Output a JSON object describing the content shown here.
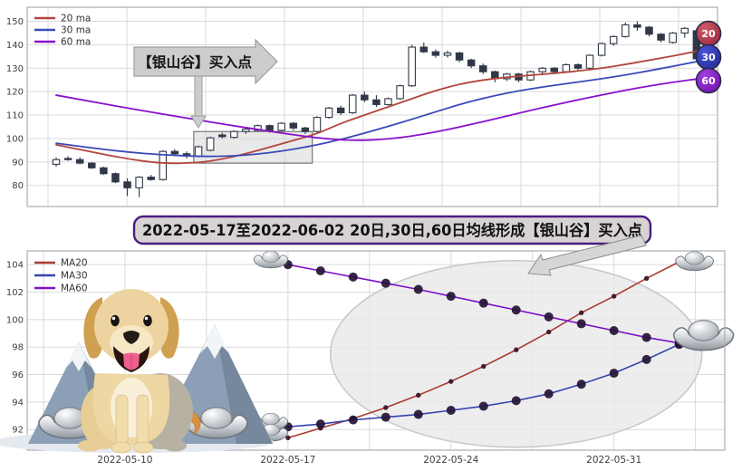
{
  "section_title": {
    "text": "2022-05-17至2022-06-02 20日,30日,60日均线形成【银山谷】买入点",
    "bg": "#d7d3d3",
    "border_color": "#4a1d7e"
  },
  "colors": {
    "grid": "#dadada",
    "spine": "#a8aeb6",
    "tick_text": "#3d3d3d",
    "candle": "#303848",
    "box_fill": "#d7d7d7",
    "box_stroke": "#5f5f5f",
    "callout_fill": "#cccccc",
    "callout_stroke": "#9e9e9e",
    "arrow_fill": "#d6d6d6",
    "arrow_stroke": "#8e8e8e",
    "ellipse_fill": "#e9e9e9",
    "ellipse_stroke": "#c7c7c7"
  },
  "chart_data": [
    {
      "type": "candlestick",
      "legend": [
        {
          "label": "20 ma",
          "color": "#b2453d"
        },
        {
          "label": "30 ma",
          "color": "#3a4ab8"
        },
        {
          "label": "60 ma",
          "color": "#8a10cb"
        }
      ],
      "ylim": [
        71,
        156
      ],
      "yticks": [
        80,
        90,
        100,
        110,
        120,
        130,
        140,
        150
      ],
      "grid": true,
      "callout": {
        "text": "【银山谷】买入点"
      },
      "highlight_box": {
        "x0": 11.6,
        "x1": 21.6,
        "y0": 89.5,
        "y1": 103
      },
      "badges": [
        {
          "label": "20",
          "inner": "#cf5a66",
          "outer": "#952241"
        },
        {
          "label": "30",
          "inner": "#4a55d6",
          "outer": "#1d2490"
        },
        {
          "label": "60",
          "inner": "#a13fe0",
          "outer": "#6a0aa8"
        }
      ],
      "candles_ohlc": [
        [
          89,
          92,
          88,
          91
        ],
        [
          91.5,
          92.5,
          90.5,
          91
        ],
        [
          91,
          92,
          89,
          89.5
        ],
        [
          89.5,
          90,
          87,
          87.5
        ],
        [
          87.5,
          88,
          84.5,
          85
        ],
        [
          85,
          85.5,
          81,
          81.5
        ],
        [
          81.5,
          83,
          75.5,
          79
        ],
        [
          79,
          84,
          75,
          83.5
        ],
        [
          83.5,
          84.5,
          82,
          82.5
        ],
        [
          82.5,
          95,
          82,
          94.5
        ],
        [
          94.5,
          95.5,
          92.5,
          93.5
        ],
        [
          93.5,
          94.5,
          91.5,
          92.5
        ],
        [
          92.5,
          97,
          92,
          96.5
        ],
        [
          95,
          100.8,
          94.5,
          100.3
        ],
        [
          101.5,
          102.5,
          100,
          100.8
        ],
        [
          100.5,
          103.5,
          100,
          103
        ],
        [
          103,
          104.5,
          102,
          104
        ],
        [
          103.5,
          106,
          103,
          105.5
        ],
        [
          105.5,
          106,
          102.5,
          103.5
        ],
        [
          103.5,
          107,
          103,
          106.5
        ],
        [
          106.5,
          107,
          103.5,
          104.5
        ],
        [
          104.5,
          105,
          102,
          103
        ],
        [
          103,
          109.5,
          102.5,
          109
        ],
        [
          109,
          113.5,
          108.5,
          113
        ],
        [
          113,
          114,
          110,
          111
        ],
        [
          111,
          119,
          110.5,
          118.5
        ],
        [
          118.5,
          120,
          115.5,
          116.5
        ],
        [
          116.5,
          118.5,
          113.5,
          114.5
        ],
        [
          114.5,
          117.5,
          114,
          117
        ],
        [
          117,
          123,
          116.5,
          122.5
        ],
        [
          122.5,
          140,
          122,
          139
        ],
        [
          139,
          141,
          136.5,
          137
        ],
        [
          137,
          138,
          134.5,
          135.5
        ],
        [
          135.5,
          137.5,
          134.5,
          136.5
        ],
        [
          136.5,
          137,
          132.5,
          133.5
        ],
        [
          133.5,
          134,
          130,
          131
        ],
        [
          131,
          132,
          127.5,
          128.5
        ],
        [
          128.5,
          129,
          124,
          125.5
        ],
        [
          125.5,
          128,
          124.5,
          127.5
        ],
        [
          127.5,
          128,
          124,
          125
        ],
        [
          125,
          129,
          124.5,
          128.5
        ],
        [
          128.5,
          130.5,
          127,
          130
        ],
        [
          130,
          130.5,
          127.5,
          128.5
        ],
        [
          128.5,
          132,
          128,
          131.5
        ],
        [
          131.5,
          132,
          129,
          130
        ],
        [
          130,
          136,
          129.5,
          135.5
        ],
        [
          135.5,
          141,
          135,
          140.5
        ],
        [
          140.5,
          144,
          139.5,
          143.5
        ],
        [
          143.5,
          149.5,
          143,
          148.5
        ],
        [
          148.5,
          150,
          146,
          147.5
        ],
        [
          147.5,
          148,
          143.5,
          144.5
        ],
        [
          144.5,
          145,
          141,
          142
        ],
        [
          141,
          145.5,
          140.5,
          145
        ],
        [
          145,
          147.5,
          143,
          147
        ],
        [
          146,
          147,
          132.5,
          134
        ],
        [
          136,
          137.5,
          133,
          135
        ]
      ],
      "ma_lines": [
        {
          "name": "20 ma",
          "color": "#b2453d",
          "points": [
            [
              0,
              97.3
            ],
            [
              3,
              94.3
            ],
            [
              6,
              91.3
            ],
            [
              9,
              89.3
            ],
            [
              12,
              89.6
            ],
            [
              14,
              91.2
            ],
            [
              16,
              93.5
            ],
            [
              18,
              96.3
            ],
            [
              20,
              99.2
            ],
            [
              22,
              102
            ],
            [
              24,
              106.5
            ],
            [
              26,
              110
            ],
            [
              28,
              113.5
            ],
            [
              30,
              117
            ],
            [
              32,
              120.5
            ],
            [
              34,
              123.2
            ],
            [
              36,
              125
            ],
            [
              38,
              126.2
            ],
            [
              40,
              127
            ],
            [
              42,
              127.8
            ],
            [
              44,
              128.8
            ],
            [
              46,
              130
            ],
            [
              48,
              131.6
            ],
            [
              50,
              133.4
            ],
            [
              52,
              135.2
            ],
            [
              54,
              137.2
            ],
            [
              55,
              138
            ]
          ]
        },
        {
          "name": "30 ma",
          "color": "#3a4ab8",
          "points": [
            [
              0,
              98
            ],
            [
              3,
              96
            ],
            [
              6,
              94.2
            ],
            [
              9,
              93
            ],
            [
              12,
              92.4
            ],
            [
              14,
              92.4
            ],
            [
              16,
              92.9
            ],
            [
              18,
              93.9
            ],
            [
              20,
              95.4
            ],
            [
              22,
              97.3
            ],
            [
              24,
              99.6
            ],
            [
              26,
              102.3
            ],
            [
              28,
              105.2
            ],
            [
              30,
              108.2
            ],
            [
              32,
              111.4
            ],
            [
              34,
              114.5
            ],
            [
              36,
              117.2
            ],
            [
              38,
              119.4
            ],
            [
              40,
              121.2
            ],
            [
              42,
              122.7
            ],
            [
              44,
              124.1
            ],
            [
              46,
              125.5
            ],
            [
              48,
              127.1
            ],
            [
              50,
              128.9
            ],
            [
              52,
              130.8
            ],
            [
              54,
              132.8
            ],
            [
              55,
              133.8
            ]
          ]
        },
        {
          "name": "60 ma",
          "color": "#8a10cb",
          "points": [
            [
              0,
              118.5
            ],
            [
              3,
              115.7
            ],
            [
              6,
              113
            ],
            [
              9,
              110.4
            ],
            [
              12,
              107.9
            ],
            [
              15,
              105.4
            ],
            [
              18,
              103.1
            ],
            [
              20,
              101.6
            ],
            [
              22,
              100.3
            ],
            [
              24,
              99.4
            ],
            [
              26,
              99.2
            ],
            [
              28,
              99.8
            ],
            [
              30,
              101
            ],
            [
              32,
              102.8
            ],
            [
              34,
              104.9
            ],
            [
              36,
              107.2
            ],
            [
              38,
              109.6
            ],
            [
              40,
              112
            ],
            [
              42,
              114.3
            ],
            [
              44,
              116.5
            ],
            [
              46,
              118.6
            ],
            [
              48,
              120.6
            ],
            [
              50,
              122.4
            ],
            [
              52,
              124
            ],
            [
              54,
              125.4
            ],
            [
              55,
              126
            ]
          ]
        }
      ]
    },
    {
      "type": "line",
      "legend": [
        {
          "label": "MA20",
          "color": "#a93a32"
        },
        {
          "label": "MA30",
          "color": "#3644ad"
        },
        {
          "label": "MA60",
          "color": "#7e10c8"
        }
      ],
      "ylim": [
        90.5,
        105
      ],
      "yticks": [
        92,
        94,
        96,
        98,
        100,
        102,
        104
      ],
      "x_day_range": [
        -8,
        13.4
      ],
      "xticks": [
        {
          "label": "2022-05-10",
          "day": -5
        },
        {
          "label": "2022-05-17",
          "day": 0
        },
        {
          "label": "2022-05-24",
          "day": 5
        },
        {
          "label": "2022-05-31",
          "day": 10
        }
      ],
      "dates": [
        "2022-05-17",
        "2022-05-18",
        "2022-05-19",
        "2022-05-20",
        "2022-05-23",
        "2022-05-24",
        "2022-05-25",
        "2022-05-26",
        "2022-05-27",
        "2022-05-30",
        "2022-05-31",
        "2022-06-01",
        "2022-06-02"
      ],
      "series": [
        {
          "name": "MA20",
          "color": "#a93a32",
          "marker_r": 2.7,
          "marker_color": "#3a1328",
          "values": [
            91.4,
            92.1,
            92.8,
            93.6,
            94.5,
            95.5,
            96.6,
            97.8,
            99.1,
            100.5,
            101.7,
            103.0,
            104.2
          ]
        },
        {
          "name": "MA30",
          "color": "#3644ad",
          "marker_r": 5,
          "marker_color": "#241436",
          "values": [
            92.2,
            92.4,
            92.7,
            92.9,
            93.1,
            93.4,
            93.7,
            94.1,
            94.6,
            95.3,
            96.1,
            97.1,
            98.2
          ]
        },
        {
          "name": "MA60",
          "color": "#7e10c8",
          "marker_r": 5,
          "marker_color": "#241436",
          "values": [
            104.0,
            103.55,
            103.1,
            102.65,
            102.2,
            101.7,
            101.2,
            100.7,
            100.2,
            99.7,
            99.2,
            98.7,
            98.3
          ]
        }
      ],
      "ingot_markers": {
        "MA60": [
          "first"
        ],
        "MA30": [
          "first",
          "last"
        ],
        "MA20": [
          "first",
          "last"
        ]
      },
      "ellipse_highlight": true
    }
  ]
}
